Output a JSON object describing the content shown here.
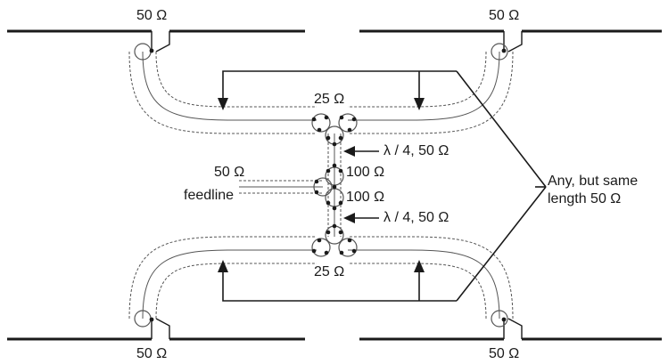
{
  "labels": {
    "top_left_impedance": "50 Ω",
    "top_right_impedance": "50 Ω",
    "bottom_left_impedance": "50 Ω",
    "bottom_right_impedance": "50 Ω",
    "top_junction_impedance": "25 Ω",
    "bottom_junction_impedance": "25 Ω",
    "upper_quarter_wave": "λ / 4, 50 Ω",
    "lower_quarter_wave": "λ / 4, 50 Ω",
    "upper_stub_impedance": "100 Ω",
    "lower_stub_impedance": "100 Ω",
    "feedline_impedance": "50 Ω",
    "feedline_label": "feedline",
    "annotation_line1": "Any, but same",
    "annotation_line2": "length 50 Ω"
  },
  "colors": {
    "ink": "#1a1a1a",
    "coax": "#555555"
  }
}
